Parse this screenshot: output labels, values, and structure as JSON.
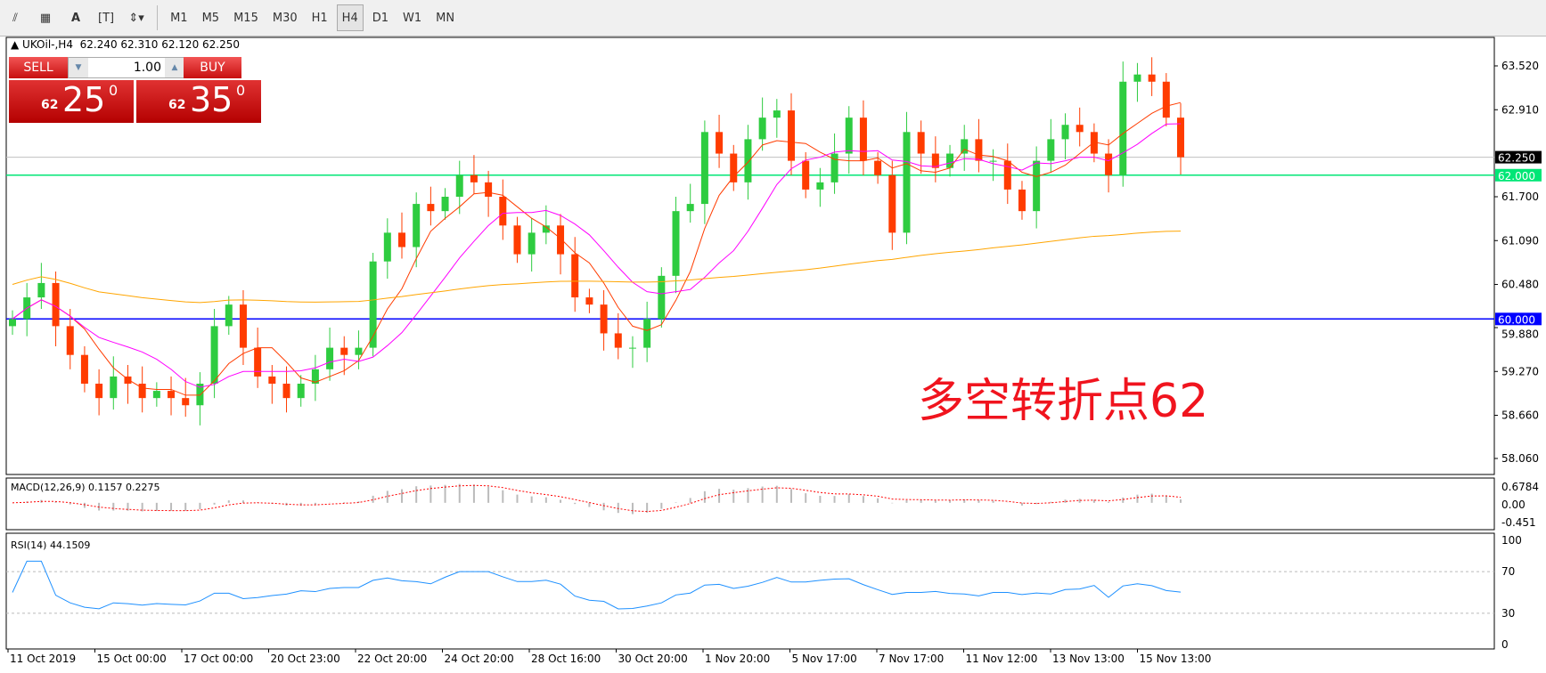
{
  "toolbar": {
    "tools": [
      "indicators",
      "templates",
      "text",
      "text-label",
      "arrows"
    ],
    "timeframes": [
      "M1",
      "M5",
      "M15",
      "M30",
      "H1",
      "H4",
      "D1",
      "W1",
      "MN"
    ],
    "active": "H4"
  },
  "header": {
    "symbol": "UKOil-,H4",
    "ohlc": "62.240 62.310 62.120 62.250"
  },
  "trade": {
    "sell": "SELL",
    "buy": "BUY",
    "volume": "1.00",
    "sell_small": "62",
    "sell_big": "25",
    "sell_sup": "0",
    "buy_small": "62",
    "buy_big": "35",
    "buy_sup": "0"
  },
  "annotation": "多空转折点62",
  "colors": {
    "bull": "#2ecc40",
    "bear": "#ff3c00",
    "ma_fast": "#ff3c00",
    "ma_mid": "#ff00ff",
    "ma_slow": "#ffa500",
    "line_62": "#00e676",
    "line_60": "#0000ff",
    "rsi": "#1e90ff",
    "macd_signal": "#ff0000"
  },
  "chart_data": {
    "type": "candlestick",
    "ylim": [
      58.06,
      63.52
    ],
    "y_ticks": [
      "63.520",
      "62.910",
      "62.250",
      "61.700",
      "61.090",
      "60.480",
      "59.880",
      "59.270",
      "58.660",
      "58.060"
    ],
    "current_price": "62.250",
    "hlines": [
      {
        "label": "62.000",
        "value": 62.0
      },
      {
        "label": "60.000",
        "value": 60.0
      }
    ],
    "x_ticks": [
      "11 Oct 2019",
      "15 Oct 00:00",
      "17 Oct 00:00",
      "20 Oct 23:00",
      "22 Oct 20:00",
      "24 Oct 20:00",
      "28 Oct 16:00",
      "30 Oct 20:00",
      "1 Nov 20:00",
      "5 Nov 17:00",
      "7 Nov 17:00",
      "11 Nov 12:00",
      "13 Nov 13:00",
      "15 Nov 13:00"
    ],
    "closes": [
      60.0,
      60.3,
      60.5,
      59.9,
      59.5,
      59.1,
      58.9,
      59.2,
      59.1,
      58.9,
      59.0,
      58.9,
      58.8,
      59.1,
      59.9,
      60.2,
      59.6,
      59.2,
      59.1,
      58.9,
      59.1,
      59.3,
      59.6,
      59.5,
      59.6,
      60.8,
      61.2,
      61.0,
      61.6,
      61.5,
      61.7,
      62.0,
      61.9,
      61.7,
      61.3,
      60.9,
      61.2,
      61.3,
      60.9,
      60.3,
      60.2,
      59.8,
      59.6,
      59.6,
      60.0,
      60.6,
      61.5,
      61.6,
      62.6,
      62.3,
      61.9,
      62.5,
      62.8,
      62.9,
      62.2,
      61.8,
      61.9,
      62.3,
      62.8,
      62.2,
      62.0,
      61.2,
      62.6,
      62.3,
      62.1,
      62.3,
      62.5,
      62.2,
      62.2,
      61.8,
      61.5,
      62.2,
      62.5,
      62.7,
      62.6,
      62.3,
      62.0,
      63.3,
      63.4,
      63.3,
      62.8,
      62.25
    ],
    "macd": {
      "label": "MACD(12,26,9) 0.1157 0.2275",
      "y_ticks": [
        "0.6784",
        "0.00",
        "-0.451"
      ],
      "ylim": [
        -0.451,
        0.6784
      ]
    },
    "rsi": {
      "label": "RSI(14) 44.1509",
      "y_ticks": [
        "100",
        "70",
        "30",
        "0"
      ],
      "levels": [
        70,
        30
      ]
    }
  }
}
